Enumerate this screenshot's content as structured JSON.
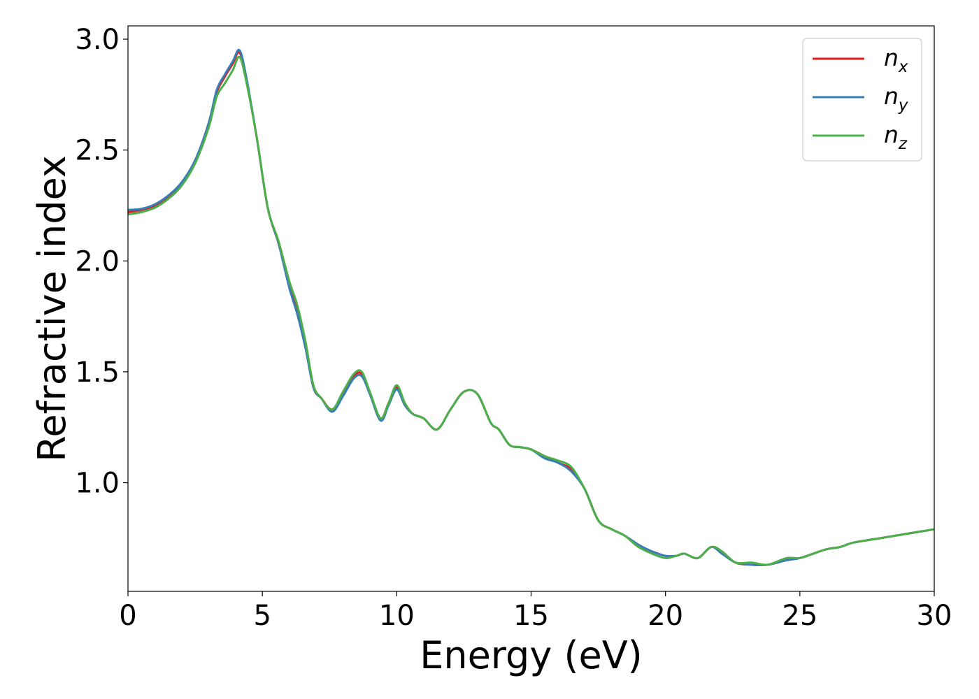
{
  "chart_data": {
    "type": "line",
    "title": "",
    "xlabel": "Energy (eV)",
    "ylabel": "Refractive index",
    "xlim": [
      0,
      30
    ],
    "ylim": [
      0.51,
      3.06
    ],
    "xticks": [
      0,
      5,
      10,
      15,
      20,
      25,
      30
    ],
    "yticks": [
      1.0,
      1.5,
      2.0,
      2.5,
      3.0
    ],
    "xtick_labels": [
      "0",
      "5",
      "10",
      "15",
      "20",
      "25",
      "30"
    ],
    "ytick_labels": [
      "1.0",
      "1.5",
      "2.0",
      "2.5",
      "3.0"
    ],
    "grid": false,
    "legend_position": "top-right",
    "x": [
      0,
      0.5,
      1,
      1.5,
      2,
      2.5,
      3,
      3.3,
      3.6,
      3.9,
      4.15,
      4.4,
      4.8,
      5.2,
      5.6,
      6,
      6.3,
      6.6,
      6.9,
      7.2,
      7.6,
      8,
      8.4,
      8.7,
      9,
      9.4,
      9.7,
      10,
      10.3,
      10.6,
      11,
      11.5,
      12,
      12.5,
      13,
      13.5,
      13.8,
      14.2,
      14.6,
      15,
      15.5,
      16,
      16.5,
      17,
      17.5,
      18,
      18.5,
      19,
      19.5,
      20,
      20.4,
      20.7,
      21.2,
      21.7,
      22.1,
      22.6,
      23.2,
      23.8,
      24.5,
      25,
      25.5,
      26,
      26.5,
      27,
      28,
      29,
      30
    ],
    "series": [
      {
        "name": "n_x",
        "color": "#e41a1c",
        "values": [
          2.22,
          2.23,
          2.25,
          2.29,
          2.35,
          2.45,
          2.62,
          2.76,
          2.83,
          2.89,
          2.94,
          2.82,
          2.55,
          2.24,
          2.08,
          1.9,
          1.78,
          1.62,
          1.43,
          1.38,
          1.33,
          1.4,
          1.48,
          1.49,
          1.4,
          1.29,
          1.36,
          1.43,
          1.35,
          1.31,
          1.29,
          1.24,
          1.33,
          1.41,
          1.4,
          1.27,
          1.24,
          1.17,
          1.16,
          1.15,
          1.12,
          1.09,
          1.06,
          0.97,
          0.83,
          0.79,
          0.76,
          0.71,
          0.69,
          0.67,
          0.67,
          0.68,
          0.66,
          0.71,
          0.69,
          0.64,
          0.63,
          0.63,
          0.65,
          0.66,
          0.68,
          0.7,
          0.71,
          0.73,
          0.75,
          0.77,
          0.79
        ]
      },
      {
        "name": "n_y",
        "color": "#377eb8",
        "values": [
          2.23,
          2.235,
          2.255,
          2.295,
          2.355,
          2.455,
          2.62,
          2.77,
          2.84,
          2.9,
          2.95,
          2.83,
          2.55,
          2.24,
          2.08,
          1.88,
          1.76,
          1.61,
          1.43,
          1.38,
          1.32,
          1.39,
          1.47,
          1.48,
          1.4,
          1.28,
          1.35,
          1.42,
          1.35,
          1.31,
          1.29,
          1.24,
          1.33,
          1.41,
          1.4,
          1.27,
          1.24,
          1.17,
          1.16,
          1.15,
          1.11,
          1.09,
          1.05,
          0.97,
          0.83,
          0.79,
          0.76,
          0.72,
          0.69,
          0.67,
          0.67,
          0.68,
          0.66,
          0.71,
          0.68,
          0.64,
          0.63,
          0.63,
          0.65,
          0.66,
          0.68,
          0.7,
          0.71,
          0.73,
          0.75,
          0.77,
          0.79
        ]
      },
      {
        "name": "n_z",
        "color": "#4daf4a",
        "values": [
          2.21,
          2.22,
          2.24,
          2.28,
          2.34,
          2.44,
          2.6,
          2.74,
          2.8,
          2.86,
          2.92,
          2.81,
          2.55,
          2.24,
          2.09,
          1.91,
          1.8,
          1.64,
          1.44,
          1.38,
          1.33,
          1.41,
          1.49,
          1.5,
          1.41,
          1.29,
          1.36,
          1.44,
          1.36,
          1.31,
          1.29,
          1.24,
          1.33,
          1.41,
          1.4,
          1.27,
          1.24,
          1.17,
          1.16,
          1.15,
          1.12,
          1.1,
          1.07,
          0.97,
          0.83,
          0.79,
          0.76,
          0.71,
          0.68,
          0.66,
          0.67,
          0.68,
          0.66,
          0.71,
          0.69,
          0.64,
          0.64,
          0.63,
          0.66,
          0.66,
          0.68,
          0.7,
          0.71,
          0.73,
          0.75,
          0.77,
          0.79
        ]
      }
    ],
    "legend": [
      {
        "base": "n",
        "sub": "x",
        "color": "#e41a1c"
      },
      {
        "base": "n",
        "sub": "y",
        "color": "#377eb8"
      },
      {
        "base": "n",
        "sub": "z",
        "color": "#4daf4a"
      }
    ]
  }
}
